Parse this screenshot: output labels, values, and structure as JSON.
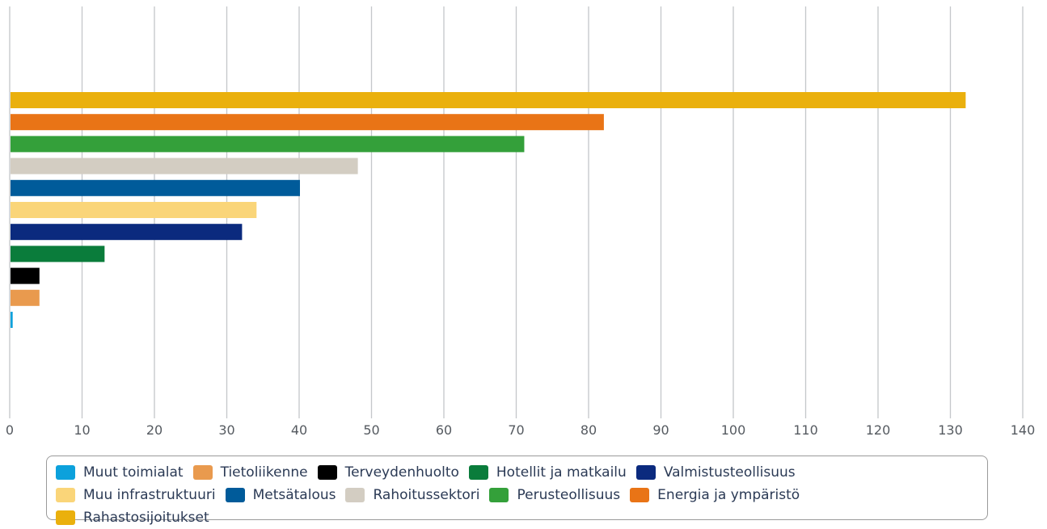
{
  "chart_data": {
    "type": "bar",
    "orientation": "horizontal",
    "title": "",
    "xlabel": "",
    "ylabel": "",
    "xlim": [
      0,
      140
    ],
    "x_ticks": [
      "0",
      "10",
      "20",
      "30",
      "40",
      "50",
      "60",
      "70",
      "80",
      "90",
      "100",
      "110",
      "120",
      "130",
      "140"
    ],
    "grid": true,
    "legend_position": "bottom",
    "series": [
      {
        "name": "Muut toimialat",
        "value": 0.3,
        "color": "#0ca1dc"
      },
      {
        "name": "Tietoliikenne",
        "value": 4,
        "color": "#e99a4e"
      },
      {
        "name": "Terveydenhuolto",
        "value": 4,
        "color": "#000000"
      },
      {
        "name": "Hotellit ja matkailu",
        "value": 13,
        "color": "#0a7c3b"
      },
      {
        "name": "Valmistusteollisuus",
        "value": 32,
        "color": "#0b2a7e"
      },
      {
        "name": "Muu infrastruktuuri",
        "value": 34,
        "color": "#fad579"
      },
      {
        "name": "Metsätalous",
        "value": 40,
        "color": "#005b9a"
      },
      {
        "name": "Rahoitussektori",
        "value": 48,
        "color": "#d3cdc2"
      },
      {
        "name": "Perusteollisuus",
        "value": 71,
        "color": "#34a03a"
      },
      {
        "name": "Energia ja ympäristö",
        "value": 82,
        "color": "#e97416"
      },
      {
        "name": "Rahastosijoitukset",
        "value": 132,
        "color": "#eab00d"
      }
    ]
  }
}
